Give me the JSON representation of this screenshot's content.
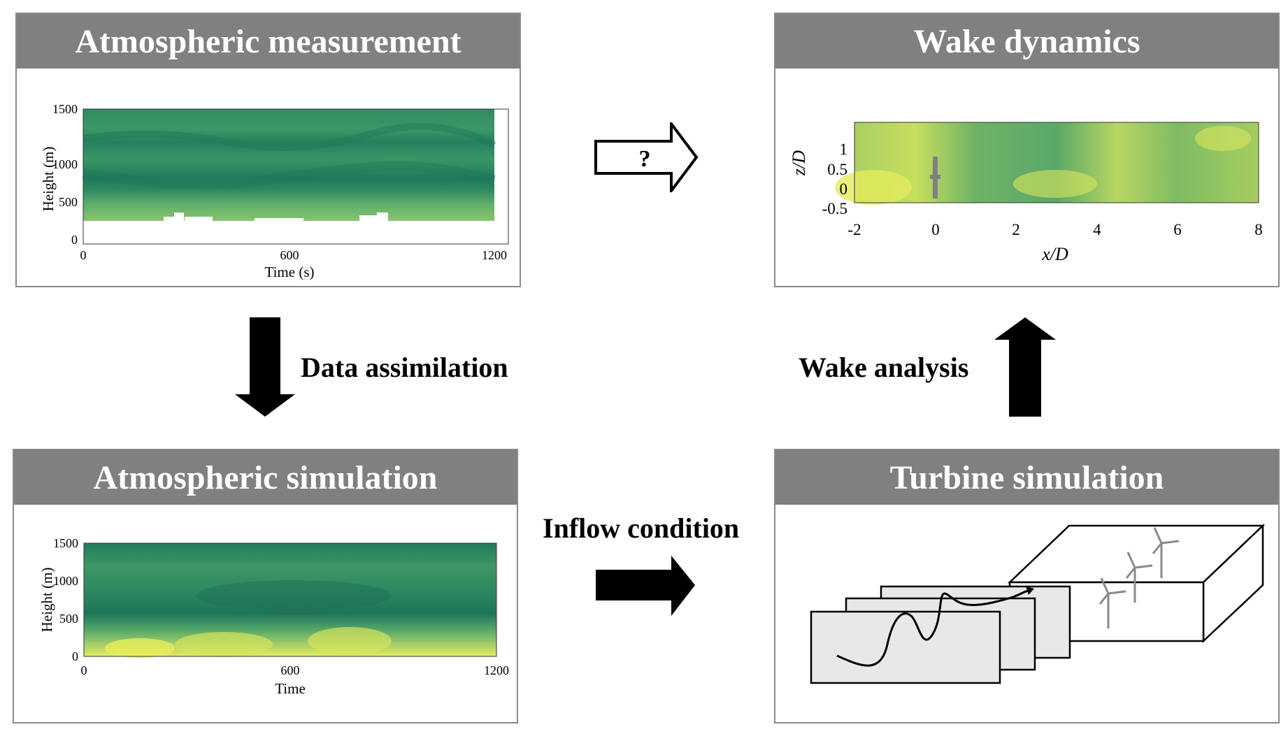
{
  "panels": {
    "measurement": {
      "title": "Atmospheric measurement",
      "plot": {
        "ylabel": "Height (m)",
        "xlabel": "Time (s)",
        "yticks": [
          "0",
          "500",
          "1000",
          "1500"
        ],
        "xticks": [
          "0",
          "600",
          "1200"
        ]
      }
    },
    "wake": {
      "title": "Wake dynamics",
      "plot": {
        "ylabel": "z/D",
        "xlabel": "x/D",
        "yticks": [
          "-0.5",
          "0",
          "0.5",
          "1"
        ],
        "xticks": [
          "-2",
          "0",
          "2",
          "4",
          "6",
          "8"
        ]
      }
    },
    "simulation": {
      "title": "Atmospheric simulation",
      "plot": {
        "ylabel": "Height (m)",
        "xlabel": "Time",
        "yticks": [
          "0",
          "500",
          "1000",
          "1500"
        ],
        "xticks": [
          "0",
          "600",
          "1200"
        ]
      }
    },
    "turbine": {
      "title": "Turbine simulation"
    }
  },
  "arrows": {
    "question": "?",
    "data_assimilation": "Data assimilation",
    "wake_analysis": "Wake analysis",
    "inflow_condition": "Inflow condition"
  },
  "colors": {
    "header": "#808080",
    "field_dark": "#1f7a5c",
    "field_light": "#e8ef5a"
  }
}
